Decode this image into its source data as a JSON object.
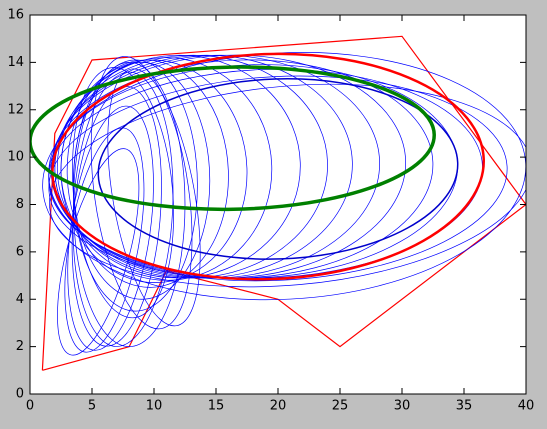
{
  "chart_data": {
    "type": "ellipse",
    "xlim": [
      0,
      40
    ],
    "ylim": [
      0,
      16
    ],
    "xticks": [
      0,
      5,
      10,
      15,
      20,
      25,
      30,
      35,
      40
    ],
    "yticks": [
      0,
      2,
      4,
      6,
      8,
      10,
      12,
      14,
      16
    ],
    "polygon": {
      "color": "#ff0000",
      "x": [
        1,
        2,
        5,
        30,
        40,
        25,
        20,
        11,
        8,
        1
      ],
      "y": [
        1,
        11,
        14.1,
        15.1,
        8,
        2,
        4,
        5.2,
        2,
        1
      ]
    },
    "series": [
      {
        "color": "#0000ff",
        "width": 0.7,
        "ellipses": [
          {
            "cx": 5.5,
            "cy": 6,
            "rx": 2.5,
            "ry": 4.5,
            "angle": -15
          },
          {
            "cx": 6,
            "cy": 6.5,
            "rx": 2.8,
            "ry": 4.8,
            "angle": -10
          },
          {
            "cx": 6.5,
            "cy": 7,
            "rx": 3.2,
            "ry": 5.2,
            "angle": -8
          },
          {
            "cx": 7,
            "cy": 7.5,
            "rx": 3.5,
            "ry": 5.5,
            "angle": -5
          },
          {
            "cx": 7.5,
            "cy": 7.8,
            "rx": 4,
            "ry": 5.8,
            "angle": -3
          },
          {
            "cx": 8,
            "cy": 8,
            "rx": 4.5,
            "ry": 6,
            "angle": 0
          },
          {
            "cx": 7.5,
            "cy": 8.5,
            "rx": 4,
            "ry": 5.3,
            "angle": 5
          },
          {
            "cx": 9,
            "cy": 8.5,
            "rx": 3.8,
            "ry": 5.8,
            "angle": 8
          },
          {
            "cx": 10,
            "cy": 8.3,
            "rx": 3.3,
            "ry": 5.5,
            "angle": 10
          },
          {
            "cx": 8.5,
            "cy": 8.8,
            "rx": 5,
            "ry": 5.3,
            "angle": 0
          },
          {
            "cx": 9,
            "cy": 9,
            "rx": 5.5,
            "ry": 5,
            "angle": 0
          },
          {
            "cx": 9.5,
            "cy": 9.3,
            "rx": 6.5,
            "ry": 4.8,
            "angle": 2
          },
          {
            "cx": 10,
            "cy": 9.4,
            "rx": 7.5,
            "ry": 4.7,
            "angle": 2
          },
          {
            "cx": 11,
            "cy": 9.5,
            "rx": 8.5,
            "ry": 4.7,
            "angle": 2
          },
          {
            "cx": 12,
            "cy": 9.6,
            "rx": 9.8,
            "ry": 4.7,
            "angle": 2
          },
          {
            "cx": 13,
            "cy": 9.6,
            "rx": 11,
            "ry": 4.7,
            "angle": 2
          },
          {
            "cx": 14,
            "cy": 9.6,
            "rx": 12,
            "ry": 4.7,
            "angle": 2
          },
          {
            "cx": 15,
            "cy": 9.6,
            "rx": 13.2,
            "ry": 4.7,
            "angle": 2
          },
          {
            "cx": 16,
            "cy": 9.6,
            "rx": 14.3,
            "ry": 4.7,
            "angle": 2
          },
          {
            "cx": 17,
            "cy": 9.5,
            "rx": 15.5,
            "ry": 4.6,
            "angle": 2
          },
          {
            "cx": 18,
            "cy": 9.4,
            "rx": 16.5,
            "ry": 4.5,
            "angle": 2
          },
          {
            "cx": 19,
            "cy": 9.3,
            "rx": 17.5,
            "ry": 4.4,
            "angle": 2
          },
          {
            "cx": 20,
            "cy": 9.1,
            "rx": 18.5,
            "ry": 4.3,
            "angle": 3
          },
          {
            "cx": 21,
            "cy": 8.8,
            "rx": 19.5,
            "ry": 4.2,
            "angle": 5
          },
          {
            "cx": 20.5,
            "cy": 9.2,
            "rx": 19.5,
            "ry": 5.2,
            "angle": 3
          }
        ]
      },
      {
        "color": "#0000cc",
        "width": 1.5,
        "ellipses": [
          {
            "cx": 20,
            "cy": 9.5,
            "rx": 14.5,
            "ry": 3.8,
            "angle": 2
          }
        ]
      },
      {
        "color": "#ff0000",
        "width": 2.5,
        "ellipses": [
          {
            "cx": 19.2,
            "cy": 9.6,
            "rx": 17.4,
            "ry": 4.75,
            "angle": 2
          }
        ]
      },
      {
        "color": "#008000",
        "width": 3.5,
        "ellipses": [
          {
            "cx": 16.3,
            "cy": 10.8,
            "rx": 16.3,
            "ry": 3,
            "angle": 1
          }
        ]
      }
    ]
  }
}
